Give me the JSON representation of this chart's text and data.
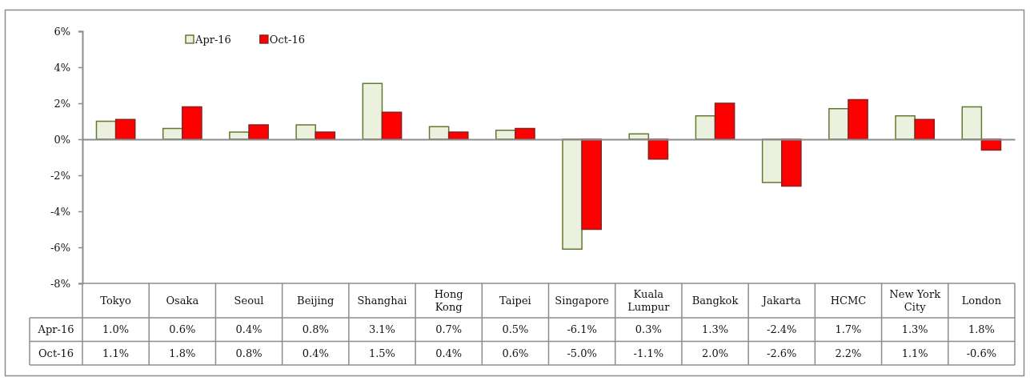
{
  "chart_data": {
    "type": "bar",
    "categories": [
      "Tokyo",
      "Osaka",
      "Seoul",
      "Beijing",
      "Shanghai",
      "Hong Kong",
      "Taipei",
      "Singapore",
      "Kuala Lumpur",
      "Bangkok",
      "Jakarta",
      "HCMC",
      "New York City",
      "London"
    ],
    "series": [
      {
        "name": "Apr-16",
        "color": "#ebf1de",
        "values": [
          1.0,
          0.6,
          0.4,
          0.8,
          3.1,
          0.7,
          0.5,
          -6.1,
          0.3,
          1.3,
          -2.4,
          1.7,
          1.3,
          1.8
        ],
        "value_labels": [
          "1.0%",
          "0.6%",
          "0.4%",
          "0.8%",
          "3.1%",
          "0.7%",
          "0.5%",
          "-6.1%",
          "0.3%",
          "1.3%",
          "-2.4%",
          "1.7%",
          "1.3%",
          "1.8%"
        ]
      },
      {
        "name": "Oct-16",
        "color": "#ff0000",
        "values": [
          1.1,
          1.8,
          0.8,
          0.4,
          1.5,
          0.4,
          0.6,
          -5.0,
          -1.1,
          2.0,
          -2.6,
          2.2,
          1.1,
          -0.6
        ],
        "value_labels": [
          "1.1%",
          "1.8%",
          "0.8%",
          "0.4%",
          "1.5%",
          "0.4%",
          "0.6%",
          "-5.0%",
          "-1.1%",
          "2.0%",
          "-2.6%",
          "2.2%",
          "1.1%",
          "-0.6%"
        ]
      }
    ],
    "ylim": [
      -8,
      6
    ],
    "yticks": [
      {
        "value": 6,
        "label": "6%"
      },
      {
        "value": 4,
        "label": "4%"
      },
      {
        "value": 2,
        "label": "2%"
      },
      {
        "value": 0,
        "label": "0%"
      },
      {
        "value": -2,
        "label": "-2%"
      },
      {
        "value": -4,
        "label": "-4%"
      },
      {
        "value": -6,
        "label": "-6%"
      },
      {
        "value": -8,
        "label": "-8%"
      }
    ],
    "legend": "top left"
  }
}
